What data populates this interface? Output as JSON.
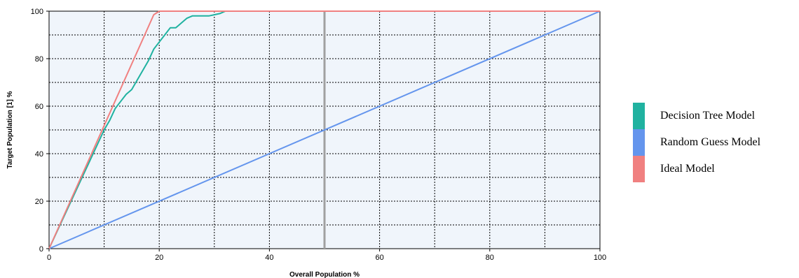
{
  "chart_data": {
    "type": "line",
    "title": "",
    "xlabel": "Overall Population %",
    "ylabel": "Target Population [1] %",
    "xlim": [
      0,
      100
    ],
    "ylim": [
      0,
      100
    ],
    "x_ticks": [
      "0",
      "20",
      "40",
      "60",
      "80",
      "100"
    ],
    "y_ticks": [
      "0",
      "20",
      "40",
      "60",
      "80",
      "100"
    ],
    "grid": true,
    "legend_position": "right",
    "series": [
      {
        "name": "Decision Tree Model",
        "color": "#20b2a0",
        "x": [
          0,
          2,
          4,
          6,
          8,
          10,
          11,
          12,
          13,
          14,
          15,
          16,
          17,
          18,
          19,
          20,
          21,
          22,
          23,
          24,
          25,
          26,
          27,
          28,
          29,
          30,
          31,
          32,
          100
        ],
        "y": [
          0,
          10,
          20,
          30,
          40,
          50,
          54,
          59,
          62,
          65,
          67,
          71,
          75,
          79,
          84,
          87,
          90,
          93,
          93,
          95,
          97,
          98,
          98,
          98,
          98,
          98.5,
          99,
          100,
          100
        ]
      },
      {
        "name": "Random Guess Model",
        "color": "#6495ed",
        "x": [
          0,
          100
        ],
        "y": [
          0,
          100
        ]
      },
      {
        "name": "Ideal Model",
        "color": "#f08080",
        "x": [
          0,
          19,
          20,
          100
        ],
        "y": [
          0,
          98.5,
          100,
          100
        ]
      }
    ],
    "vertical_marker": {
      "x": 50,
      "color": "#a0a0a0"
    }
  }
}
